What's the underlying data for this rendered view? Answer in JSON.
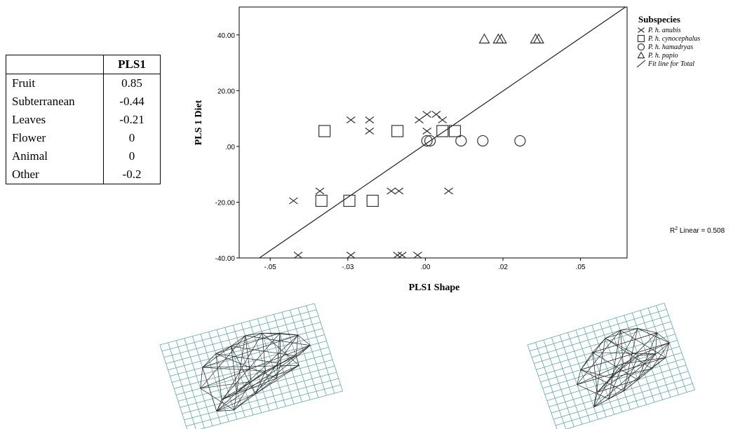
{
  "table": {
    "header": "PLS1",
    "rows": [
      {
        "name": "Fruit",
        "value": "0.85"
      },
      {
        "name": "Subterranean",
        "value": "-0.44"
      },
      {
        "name": "Leaves",
        "value": "-0.21"
      },
      {
        "name": "Flower",
        "value": "0"
      },
      {
        "name": "Animal",
        "value": "0"
      },
      {
        "name": "Other",
        "value": "-0.2"
      }
    ]
  },
  "chart_data": {
    "type": "scatter",
    "xlabel": "PLS1 Shape",
    "ylabel": "PLS 1 Diet",
    "xlim": [
      -0.06,
      0.065
    ],
    "ylim": [
      -40,
      50
    ],
    "xticks": [
      -0.05,
      -0.025,
      0.0,
      0.025,
      0.05
    ],
    "xtick_labels": [
      "-.05",
      "-.03",
      ".00",
      ".02",
      ".05"
    ],
    "yticks": [
      -40,
      -20,
      0,
      20,
      40
    ],
    "ytick_labels": [
      "-40.00",
      "-20.00",
      ".00",
      "20.00",
      "40.00"
    ],
    "legend_title": "Subspecies",
    "legend_position": "top-right, outside plot",
    "r2_label": "R",
    "r2_sup": "2",
    "r2_text": " Linear = 0.508",
    "fit_line": {
      "x": [
        -0.0535,
        0.0645
      ],
      "y": [
        -40,
        50
      ]
    },
    "series": [
      {
        "name": "P. h. anubis",
        "marker": "x",
        "points": [
          [
            -0.0425,
            -19.5
          ],
          [
            -0.041,
            -39
          ],
          [
            -0.034,
            -16
          ],
          [
            -0.024,
            9.5
          ],
          [
            -0.024,
            -39
          ],
          [
            -0.018,
            9.5
          ],
          [
            -0.018,
            5.5
          ],
          [
            -0.011,
            -16
          ],
          [
            -0.0085,
            -16
          ],
          [
            -0.009,
            -39
          ],
          [
            -0.0075,
            -39
          ],
          [
            -0.0025,
            -39
          ],
          [
            -0.002,
            9.5
          ],
          [
            0.0005,
            11.5
          ],
          [
            0.0005,
            5.5
          ],
          [
            0.0035,
            11.5
          ],
          [
            0.0055,
            9.5
          ],
          [
            0.0075,
            -16
          ]
        ]
      },
      {
        "name": "P. h. cynocephalus",
        "marker": "square",
        "points": [
          [
            -0.0335,
            -19.5
          ],
          [
            -0.0325,
            5.5
          ],
          [
            -0.0245,
            -19.5
          ],
          [
            -0.017,
            -19.5
          ],
          [
            -0.009,
            5.5
          ],
          [
            0.0055,
            5.5
          ],
          [
            0.0095,
            5.5
          ]
        ]
      },
      {
        "name": "P. h. hamadryas",
        "marker": "circle",
        "points": [
          [
            0.0005,
            2
          ],
          [
            0.0015,
            2
          ],
          [
            0.0115,
            2
          ],
          [
            0.0185,
            2
          ],
          [
            0.0305,
            2
          ]
        ]
      },
      {
        "name": "P. h. papio",
        "marker": "triangle",
        "points": [
          [
            0.019,
            38.5
          ],
          [
            0.0235,
            38.5
          ],
          [
            0.0245,
            38.5
          ],
          [
            0.0355,
            38.5
          ],
          [
            0.0365,
            38.5
          ]
        ]
      }
    ],
    "legend_fit_label": "Fit line for Total"
  }
}
